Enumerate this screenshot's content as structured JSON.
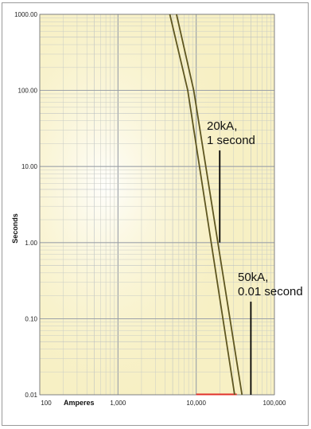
{
  "chart_data": {
    "type": "line",
    "xscale": "log",
    "yscale": "log",
    "xlim": [
      100,
      100000
    ],
    "ylim": [
      0.01,
      1000
    ],
    "xlabel": "Amperes",
    "ylabel": "Seconds",
    "xticks": [
      "100",
      "1,000",
      "10,000",
      "100,000"
    ],
    "yticks": [
      "1000.00",
      "100.00",
      "10.00",
      "1.00",
      "0.10",
      "0.01"
    ],
    "grid": true,
    "legend": "none",
    "background_color": "#f7f0c4",
    "curve_color": "#5e5620",
    "series": [
      {
        "x": [
          4600,
          7800,
          31000
        ],
        "y": [
          1000,
          100,
          0.01
        ]
      },
      {
        "x": [
          5600,
          9300,
          38500
        ],
        "y": [
          1000,
          100,
          0.01
        ]
      }
    ],
    "baseline_segment": {
      "x": [
        10000,
        33000
      ],
      "y": [
        0.01,
        0.01
      ],
      "color": "#e0302a"
    },
    "annotations": [
      {
        "lines": [
          "20kA,",
          "1 second"
        ],
        "x": 20000,
        "y": 1
      },
      {
        "lines": [
          "50kA,",
          "0.01 second"
        ],
        "x": 50000,
        "y": 0.01
      }
    ]
  }
}
